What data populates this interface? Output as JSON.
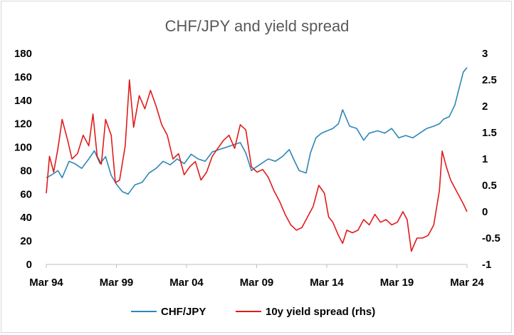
{
  "chart_data": {
    "type": "line",
    "title": "CHF/JPY and yield spread",
    "x_ticks": [
      "Mar 94",
      "Mar 99",
      "Mar 04",
      "Mar 09",
      "Mar 14",
      "Mar 19",
      "Mar 24"
    ],
    "x_range": [
      1994.17,
      2024.17
    ],
    "y_left": {
      "min": 0,
      "max": 180,
      "ticks": [
        "0",
        "20",
        "40",
        "60",
        "80",
        "100",
        "120",
        "140",
        "160",
        "180"
      ]
    },
    "y_right": {
      "min": -1,
      "max": 3,
      "ticks": [
        "-1",
        "-0.5",
        "0",
        "0.5",
        "1",
        "1.5",
        "2",
        "2.5",
        "3"
      ]
    },
    "legend_position": "bottom",
    "series": [
      {
        "name": "CHF/JPY",
        "axis": "left",
        "color": "#2e86b5",
        "x": [
          1994.17,
          1994.5,
          1995.0,
          1995.3,
          1995.8,
          1996.2,
          1996.7,
          1997.2,
          1997.6,
          1998.0,
          1998.4,
          1998.8,
          1999.2,
          1999.6,
          2000.0,
          2000.5,
          2001.0,
          2001.5,
          2002.0,
          2002.5,
          2003.0,
          2003.5,
          2004.0,
          2004.5,
          2005.0,
          2005.5,
          2006.0,
          2006.5,
          2007.0,
          2007.5,
          2008.0,
          2008.4,
          2008.8,
          2009.0,
          2009.5,
          2010.0,
          2010.5,
          2011.0,
          2011.5,
          2011.8,
          2012.2,
          2012.7,
          2013.0,
          2013.4,
          2013.8,
          2014.2,
          2014.6,
          2015.0,
          2015.3,
          2015.8,
          2016.3,
          2016.8,
          2017.2,
          2017.8,
          2018.3,
          2018.8,
          2019.3,
          2019.8,
          2020.3,
          2020.8,
          2021.3,
          2021.8,
          2022.2,
          2022.5,
          2022.9,
          2023.3,
          2023.6,
          2023.9,
          2024.17
        ],
        "values": [
          74,
          76,
          80,
          74,
          88,
          86,
          82,
          90,
          97,
          86,
          92,
          76,
          68,
          62,
          60,
          68,
          70,
          78,
          82,
          88,
          85,
          90,
          86,
          94,
          90,
          88,
          96,
          98,
          100,
          102,
          104,
          95,
          80,
          82,
          86,
          90,
          88,
          92,
          98,
          90,
          80,
          78,
          95,
          108,
          112,
          114,
          116,
          120,
          132,
          118,
          116,
          106,
          112,
          114,
          112,
          116,
          108,
          110,
          108,
          112,
          116,
          118,
          120,
          124,
          126,
          136,
          150,
          164,
          168
        ]
      },
      {
        "name": "10y yield spread (rhs)",
        "axis": "right",
        "color": "#e01b1b",
        "x": [
          1994.17,
          1994.4,
          1994.7,
          1995.0,
          1995.3,
          1995.7,
          1996.0,
          1996.4,
          1996.8,
          1997.2,
          1997.5,
          1997.8,
          1998.1,
          1998.4,
          1998.8,
          1999.1,
          1999.4,
          1999.8,
          2000.1,
          2000.4,
          2000.8,
          2001.2,
          2001.6,
          2002.0,
          2002.4,
          2002.8,
          2003.2,
          2003.6,
          2004.0,
          2004.4,
          2004.8,
          2005.2,
          2005.6,
          2006.0,
          2006.4,
          2006.8,
          2007.2,
          2007.6,
          2008.0,
          2008.4,
          2008.8,
          2009.2,
          2009.6,
          2010.0,
          2010.4,
          2010.8,
          2011.2,
          2011.6,
          2012.0,
          2012.4,
          2012.8,
          2013.2,
          2013.6,
          2014.0,
          2014.3,
          2014.6,
          2015.0,
          2015.3,
          2015.6,
          2016.0,
          2016.4,
          2016.8,
          2017.2,
          2017.6,
          2018.0,
          2018.4,
          2018.8,
          2019.2,
          2019.6,
          2019.9,
          2020.2,
          2020.6,
          2021.0,
          2021.4,
          2021.8,
          2022.2,
          2022.4,
          2022.7,
          2023.0,
          2023.3,
          2023.6,
          2023.9,
          2024.17
        ],
        "values": [
          0.35,
          1.05,
          0.75,
          1.2,
          1.75,
          1.35,
          1.0,
          1.1,
          1.45,
          1.25,
          1.85,
          1.05,
          0.9,
          1.75,
          1.45,
          0.55,
          0.6,
          1.25,
          2.5,
          1.6,
          2.2,
          1.95,
          2.3,
          2.0,
          1.65,
          1.45,
          1.0,
          1.1,
          0.7,
          0.85,
          0.95,
          0.6,
          0.75,
          1.05,
          1.2,
          1.35,
          1.45,
          1.2,
          1.65,
          1.55,
          0.85,
          0.75,
          0.8,
          0.65,
          0.4,
          0.2,
          -0.05,
          -0.25,
          -0.35,
          -0.3,
          -0.1,
          0.1,
          0.5,
          0.35,
          -0.1,
          -0.2,
          -0.45,
          -0.6,
          -0.35,
          -0.4,
          -0.35,
          -0.15,
          -0.25,
          -0.05,
          -0.2,
          -0.15,
          -0.25,
          -0.2,
          0.0,
          -0.15,
          -0.75,
          -0.5,
          -0.5,
          -0.45,
          -0.25,
          0.4,
          1.15,
          0.85,
          0.6,
          0.45,
          0.3,
          0.15,
          0.0
        ]
      }
    ]
  }
}
